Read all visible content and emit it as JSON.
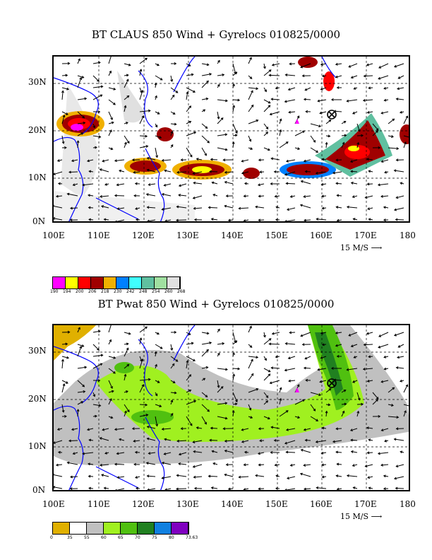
{
  "top": {
    "title": "BT CLAUS 850 Wind + Gyrelocs 010825/0000",
    "ylabels": [
      "30N",
      "20N",
      "10N",
      "0N"
    ],
    "xlabels": [
      "100E",
      "110E",
      "120E",
      "130E",
      "140E",
      "150E",
      "160E",
      "170E",
      "180"
    ],
    "scale_label": "15 M/S",
    "legend_colors": [
      "#ff00ff",
      "#ffff00",
      "#ff0000",
      "#a00000",
      "#f0b000",
      "#0080ff",
      "#40ffff",
      "#60c0a0",
      "#a0e0a0",
      "#e0e0e0"
    ],
    "legend_labels": [
      "190",
      "194",
      "200",
      "206",
      "218",
      "230",
      "242",
      "248",
      "254",
      "260",
      "268"
    ]
  },
  "bottom": {
    "title": "BT Pwat 850 Wind + Gyrelocs 010825/0000",
    "ylabels": [
      "30N",
      "20N",
      "10N",
      "0N"
    ],
    "xlabels": [
      "100E",
      "110E",
      "120E",
      "130E",
      "140E",
      "150E",
      "160E",
      "170E",
      "180"
    ],
    "scale_label": "15 M/S",
    "legend_colors": [
      "#e0b000",
      "#ffffff",
      "#c0c0c0",
      "#a0f020",
      "#50c010",
      "#208020",
      "#1080e0",
      "#8000c0"
    ],
    "legend_labels": [
      "0",
      "35",
      "55",
      "60",
      "65",
      "70",
      "75",
      "80",
      "73.63"
    ]
  },
  "markers": {
    "triangle_color": "#ff00ff",
    "gyre_symbol": "⊗"
  }
}
